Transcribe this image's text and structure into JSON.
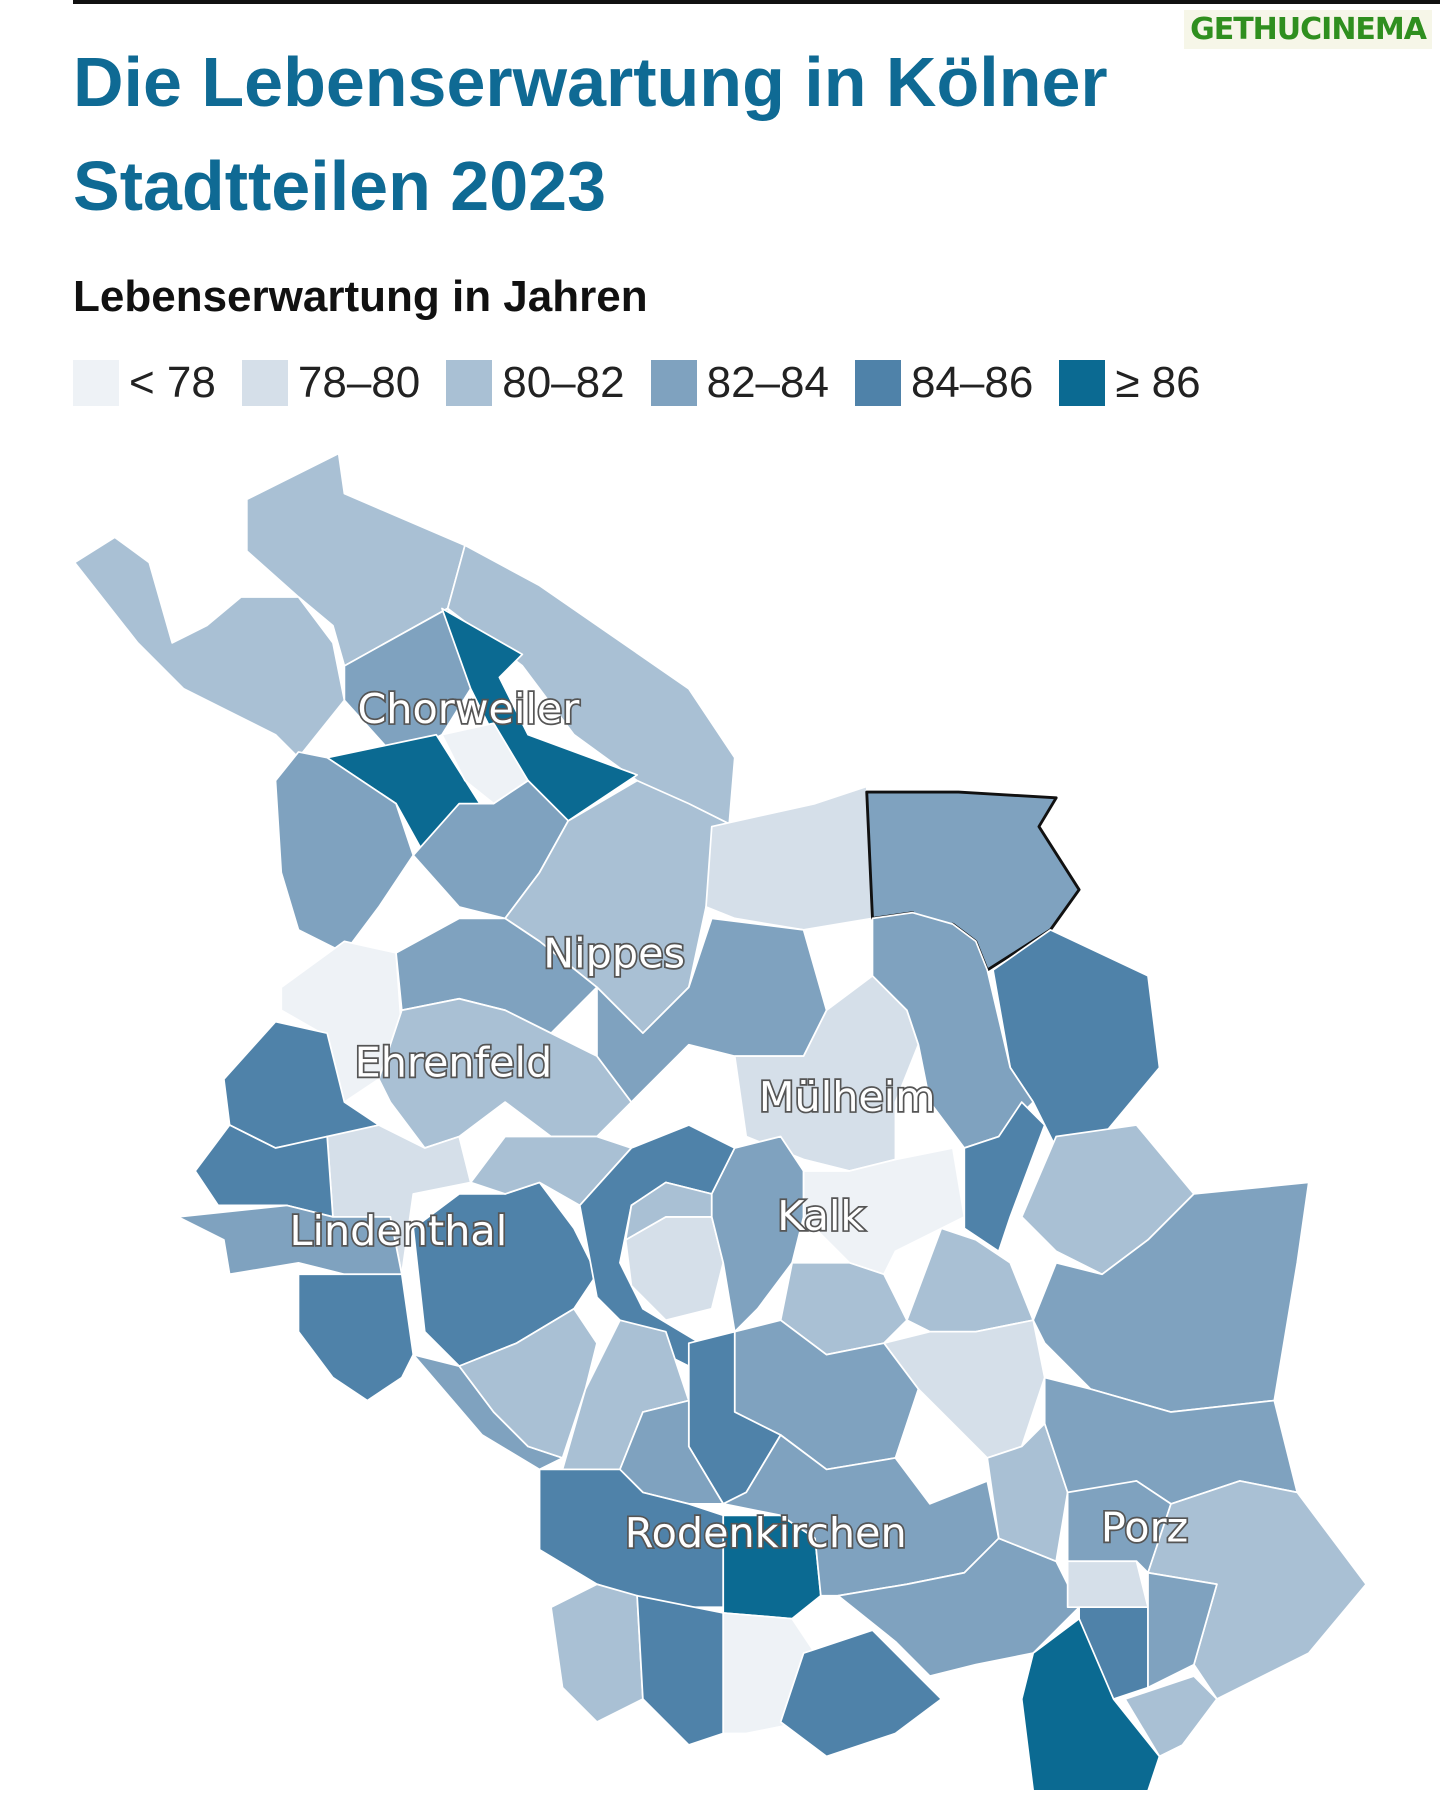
{
  "header": {
    "title": "Die Lebenserwartung in Kölner Stadtteilen 2023",
    "watermark": "GETHUCINEMA"
  },
  "legend": {
    "title": "Lebenserwartung in Jahren",
    "items": [
      {
        "label": "< 78",
        "color": "#eef2f6"
      },
      {
        "label": "78–80",
        "color": "#d5dfe9"
      },
      {
        "label": "80–82",
        "color": "#a9c0d4"
      },
      {
        "label": "82–84",
        "color": "#7fa2bf"
      },
      {
        "label": "84–86",
        "color": "#4f82a9"
      },
      {
        "label": "≥ 86",
        "color": "#0b6a92"
      }
    ]
  },
  "map": {
    "labels": [
      "Chorweiler",
      "Nippes",
      "Ehrenfeld",
      "Mülheim",
      "Kalk",
      "Lindenthal",
      "Rodenkirchen",
      "Porz"
    ]
  }
}
